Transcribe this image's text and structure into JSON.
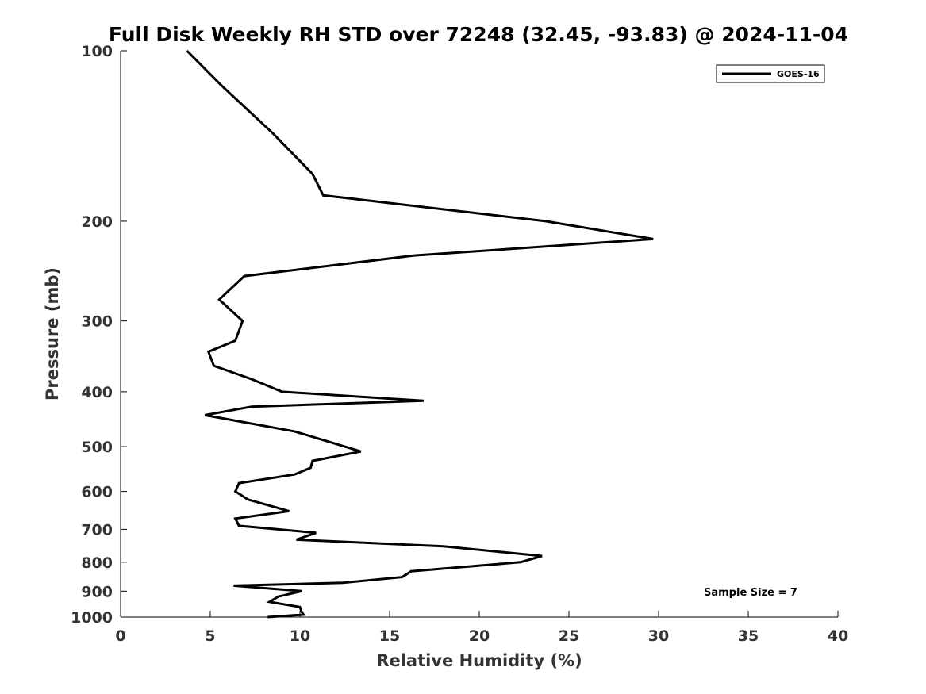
{
  "chart_data": {
    "type": "line",
    "title": "Full Disk Weekly RH STD over 72248 (32.45, -93.83) @ 2024-11-04",
    "xlabel": "Relative Humidity (%)",
    "ylabel": "Pressure (mb)",
    "xlim": [
      0,
      40
    ],
    "ylim": [
      1000,
      100
    ],
    "yscale": "log",
    "x_ticks": [
      0,
      5,
      10,
      15,
      20,
      25,
      30,
      35,
      40
    ],
    "x_tick_labels": [
      "0",
      "5",
      "10",
      "15",
      "20",
      "25",
      "30",
      "35",
      "40"
    ],
    "y_ticks": [
      100,
      200,
      300,
      400,
      500,
      600,
      700,
      800,
      900,
      1000
    ],
    "y_tick_labels": [
      "100",
      "200",
      "300",
      "400",
      "500",
      "600",
      "700",
      "800",
      "900",
      "1000"
    ],
    "grid": false,
    "legend_position": "top-right",
    "line_color": "#000000",
    "series": [
      {
        "name": "GOES-16",
        "x": [
          3.7,
          5.6,
          8.5,
          10.7,
          11.3,
          23.7,
          29.7,
          16.3,
          6.9,
          5.5,
          6.8,
          6.4,
          4.9,
          5.2,
          7.3,
          9.0,
          16.9,
          7.3,
          4.7,
          9.7,
          13.4,
          10.7,
          10.6,
          9.7,
          6.6,
          6.4,
          7.1,
          9.4,
          6.4,
          6.6,
          10.9,
          9.8,
          18.0,
          23.5,
          22.3,
          16.2,
          15.7,
          12.4,
          6.3,
          10.1,
          8.8,
          8.3,
          10.0,
          10.1,
          10.2,
          8.2
        ],
        "y": [
          100,
          115,
          140,
          165,
          180,
          200,
          215,
          230,
          250,
          275,
          300,
          325,
          340,
          360,
          380,
          400,
          415,
          425,
          440,
          470,
          510,
          530,
          545,
          560,
          580,
          600,
          620,
          650,
          670,
          690,
          710,
          730,
          750,
          780,
          800,
          830,
          850,
          870,
          880,
          900,
          920,
          940,
          960,
          980,
          990,
          1000
        ]
      }
    ],
    "annotations": [
      "Sample Size = 7"
    ]
  }
}
